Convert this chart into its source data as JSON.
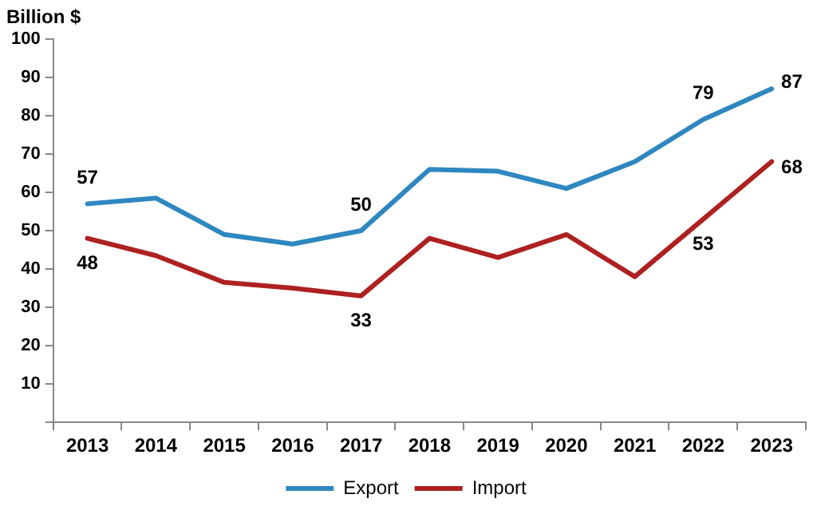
{
  "chart_data": {
    "type": "line",
    "ylabel": "Billion $",
    "categories": [
      "2013",
      "2014",
      "2015",
      "2016",
      "2017",
      "2018",
      "2019",
      "2020",
      "2021",
      "2022",
      "2023"
    ],
    "series": [
      {
        "name": "Export",
        "color": "#2f87c0",
        "values": [
          57,
          58.5,
          49,
          46.5,
          50,
          66,
          65.5,
          61,
          68,
          79,
          87
        ],
        "value_labels": [
          "57",
          null,
          null,
          null,
          "50",
          null,
          null,
          null,
          null,
          "79",
          "87"
        ]
      },
      {
        "name": "Import",
        "color": "#ae2121",
        "values": [
          48,
          43.5,
          36.5,
          35,
          33,
          48,
          43,
          49,
          38,
          53,
          68
        ],
        "value_labels": [
          "48",
          null,
          null,
          null,
          "33",
          null,
          null,
          null,
          null,
          "53",
          "68"
        ]
      }
    ],
    "ylim": [
      0,
      100
    ],
    "yticks": [
      {
        "value": 0,
        "label": null
      },
      10,
      20,
      30,
      40,
      50,
      60,
      70,
      80,
      90,
      100
    ],
    "grid": false,
    "legend": "bottom",
    "marker": "none",
    "line_style": "solid"
  }
}
